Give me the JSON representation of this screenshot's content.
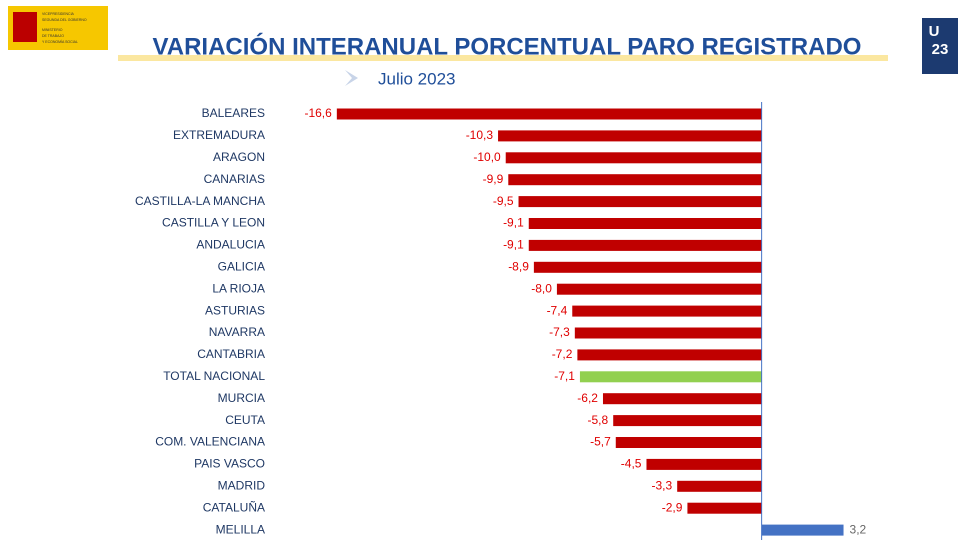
{
  "header": {
    "logo_left": [
      "VICEPRESIDENCIA",
      "SEGUNDA DEL GOBIERNO",
      "MINISTERIO",
      "DE TRABAJO",
      "Y ECONOMÍA SOCIAL"
    ],
    "logo_right": [
      "U",
      "23"
    ]
  },
  "chart_data": {
    "type": "hbar",
    "title": "VARIACIÓN INTERANUAL PORCENTUAL PARO REGISTRADO",
    "subtitle": "Julio 2023",
    "categories": [
      "BALEARES",
      "EXTREMADURA",
      "ARAGON",
      "CANARIAS",
      "CASTILLA-LA MANCHA",
      "CASTILLA Y LEON",
      "ANDALUCIA",
      "GALICIA",
      "LA RIOJA",
      "ASTURIAS",
      "NAVARRA",
      "CANTABRIA",
      "TOTAL NACIONAL",
      "MURCIA",
      "CEUTA",
      "COM. VALENCIANA",
      "PAIS VASCO",
      "MADRID",
      "CATALUÑA",
      "MELILLA"
    ],
    "values": [
      -16.6,
      -10.3,
      -10.0,
      -9.9,
      -9.5,
      -9.1,
      -9.1,
      -8.9,
      -8.0,
      -7.4,
      -7.3,
      -7.2,
      -7.1,
      -6.2,
      -5.8,
      -5.7,
      -4.5,
      -3.3,
      -2.9,
      3.2
    ],
    "value_labels": [
      "-16,6",
      "-10,3",
      "-10,0",
      "-9,9",
      "-9,5",
      "-9,1",
      "-9,1",
      "-8,9",
      "-8,0",
      "-7,4",
      "-7,3",
      "-7,2",
      "-7,1",
      "-6,2",
      "-5,8",
      "-5,7",
      "-4,5",
      "-3,3",
      "-2,9",
      "3,2"
    ],
    "colors": [
      "#c00000",
      "#c00000",
      "#c00000",
      "#c00000",
      "#c00000",
      "#c00000",
      "#c00000",
      "#c00000",
      "#c00000",
      "#c00000",
      "#c00000",
      "#c00000",
      "#92d050",
      "#c00000",
      "#c00000",
      "#c00000",
      "#c00000",
      "#c00000",
      "#c00000",
      "#4472c4"
    ],
    "xlim": [
      -18,
      4
    ],
    "grid": false
  }
}
